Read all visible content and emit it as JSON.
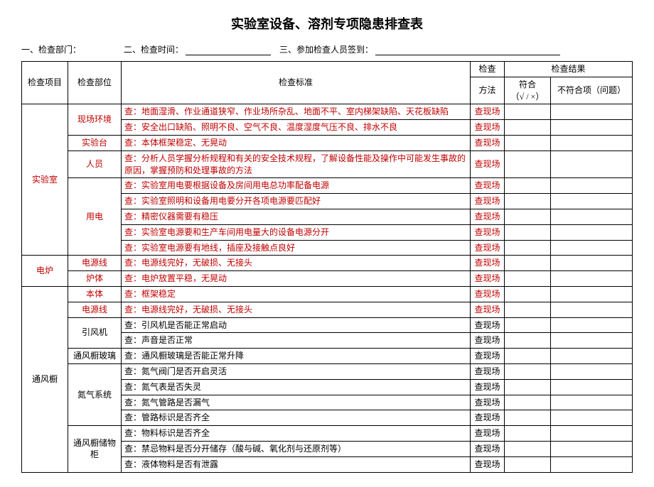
{
  "title": "实验室设备、溶剂专项隐患排查表",
  "meta": {
    "dept_label": "一、检查部门：",
    "time_label": "二、检查时间：",
    "people_label": "三、参加检查人员签到："
  },
  "header": {
    "item": "检查项目",
    "part": "检查部位",
    "std": "检查标准",
    "method": "检查",
    "method_sub": "方法",
    "result": "检查结果",
    "ok": "符合\n（√ / ×）",
    "ng": "不符合项（问题）"
  },
  "rows": [
    {
      "item": "实验室",
      "item_rowspan": 9,
      "item_red": true,
      "part": "现场环境",
      "part_rowspan": 2,
      "part_red": true,
      "std": "查：地面湿滑、作业通道狭窄、作业场所杂乱、地面不平、室内梯架缺陷、天花板缺陷",
      "std_red": true,
      "method": "查现场",
      "method_red": true
    },
    {
      "std": "查：安全出口缺陷、照明不良、空气不良、温度湿度气压不良、排水不良",
      "std_red": true,
      "method": "查现场",
      "method_red": true
    },
    {
      "part": "实验台",
      "part_rowspan": 1,
      "part_red": true,
      "std": "查：本体框架稳定、无晃动",
      "std_red": true,
      "method": "查现场",
      "method_red": true
    },
    {
      "part": "人员",
      "part_rowspan": 1,
      "part_red": true,
      "std": "查：分析人员学握分析规程和有关的安全技术规程，了解设备性能及操作中可能发生事故的原因，掌握预防和处理事故的方法",
      "std_red": true,
      "method": "查现场",
      "method_red": true
    },
    {
      "part": "用电",
      "part_rowspan": 5,
      "part_red": true,
      "std": "查：实验室用电要根据设备及房间用电总功率配备电源",
      "std_red": true,
      "method": "查现场",
      "method_red": true
    },
    {
      "std": "查：实验室照明和设备用电要分开各项电源要匹配好",
      "std_red": true,
      "method": "查现场",
      "method_red": true
    },
    {
      "std": "查：精密仪器需要有稳压",
      "std_red": true,
      "method": "查现场",
      "method_red": true
    },
    {
      "std": "查：实验室电源要和生产车间用电量大的设备电源分开",
      "std_red": true,
      "method": "查现场",
      "method_red": true
    },
    {
      "std": "查：实验室电源要有地线，插座及接触点良好",
      "std_red": true,
      "method": "查现场",
      "method_red": true
    },
    {
      "item": "电炉",
      "item_rowspan": 2,
      "item_red": true,
      "part": "电源线",
      "part_rowspan": 1,
      "part_red": true,
      "std": "查：电源线完好，无破损、无接头",
      "std_red": true,
      "method": "查现场",
      "method_red": true
    },
    {
      "part": "炉体",
      "part_rowspan": 1,
      "part_red": true,
      "std": "查：电炉放置平稳，无晃动",
      "std_red": true,
      "method": "查现场",
      "method_red": true
    },
    {
      "item": "通风橱",
      "item_rowspan": 12,
      "item_red": false,
      "part": "本体",
      "part_rowspan": 1,
      "part_red": true,
      "std": "查：框架稳定",
      "std_red": true,
      "method": "查现场",
      "method_red": true
    },
    {
      "part": "电源线",
      "part_rowspan": 1,
      "part_red": true,
      "std": "查：电源线完好，无破损、无接头",
      "std_red": true,
      "method": "查现场",
      "method_red": true
    },
    {
      "part": "引风机",
      "part_rowspan": 2,
      "part_red": false,
      "std": "查：引风机是否能正常启动",
      "std_red": false,
      "method": "查现场",
      "method_red": false
    },
    {
      "std": "查：声音是否正常",
      "std_red": false,
      "method": "查现场",
      "method_red": false
    },
    {
      "part": "通风橱玻璃",
      "part_rowspan": 1,
      "part_red": false,
      "std": "查：通风橱玻璃是否能正常升降",
      "std_red": false,
      "method": "查现场",
      "method_red": false
    },
    {
      "part": "氮气系统",
      "part_rowspan": 4,
      "part_red": false,
      "std": "查：氮气阀门是否开启灵活",
      "std_red": false,
      "method": "查现场",
      "method_red": false
    },
    {
      "std": "查：氮气表是否失灵",
      "std_red": false,
      "method": "查现场",
      "method_red": false
    },
    {
      "std": "查：氮气管路是否漏气",
      "std_red": false,
      "method": "查现场",
      "method_red": false
    },
    {
      "std": "查：管路标识是否齐全",
      "std_red": false,
      "method": "查现场",
      "method_red": false
    },
    {
      "part": "通风橱储物柜",
      "part_rowspan": 3,
      "part_red": false,
      "std": "查：物料标识是否齐全",
      "std_red": false,
      "method": "查现场",
      "method_red": false
    },
    {
      "std": "查：禁忌物料是否分开储存（酸与碱、氧化剂与还原剂等）",
      "std_red": false,
      "method": "查现场",
      "method_red": false
    },
    {
      "std": "查：液体物料是否有泄露",
      "std_red": false,
      "method": "查现场",
      "method_red": false
    }
  ],
  "colors": {
    "text": "#000000",
    "red": "#c00000",
    "background": "#ffffff",
    "border": "#000000"
  }
}
